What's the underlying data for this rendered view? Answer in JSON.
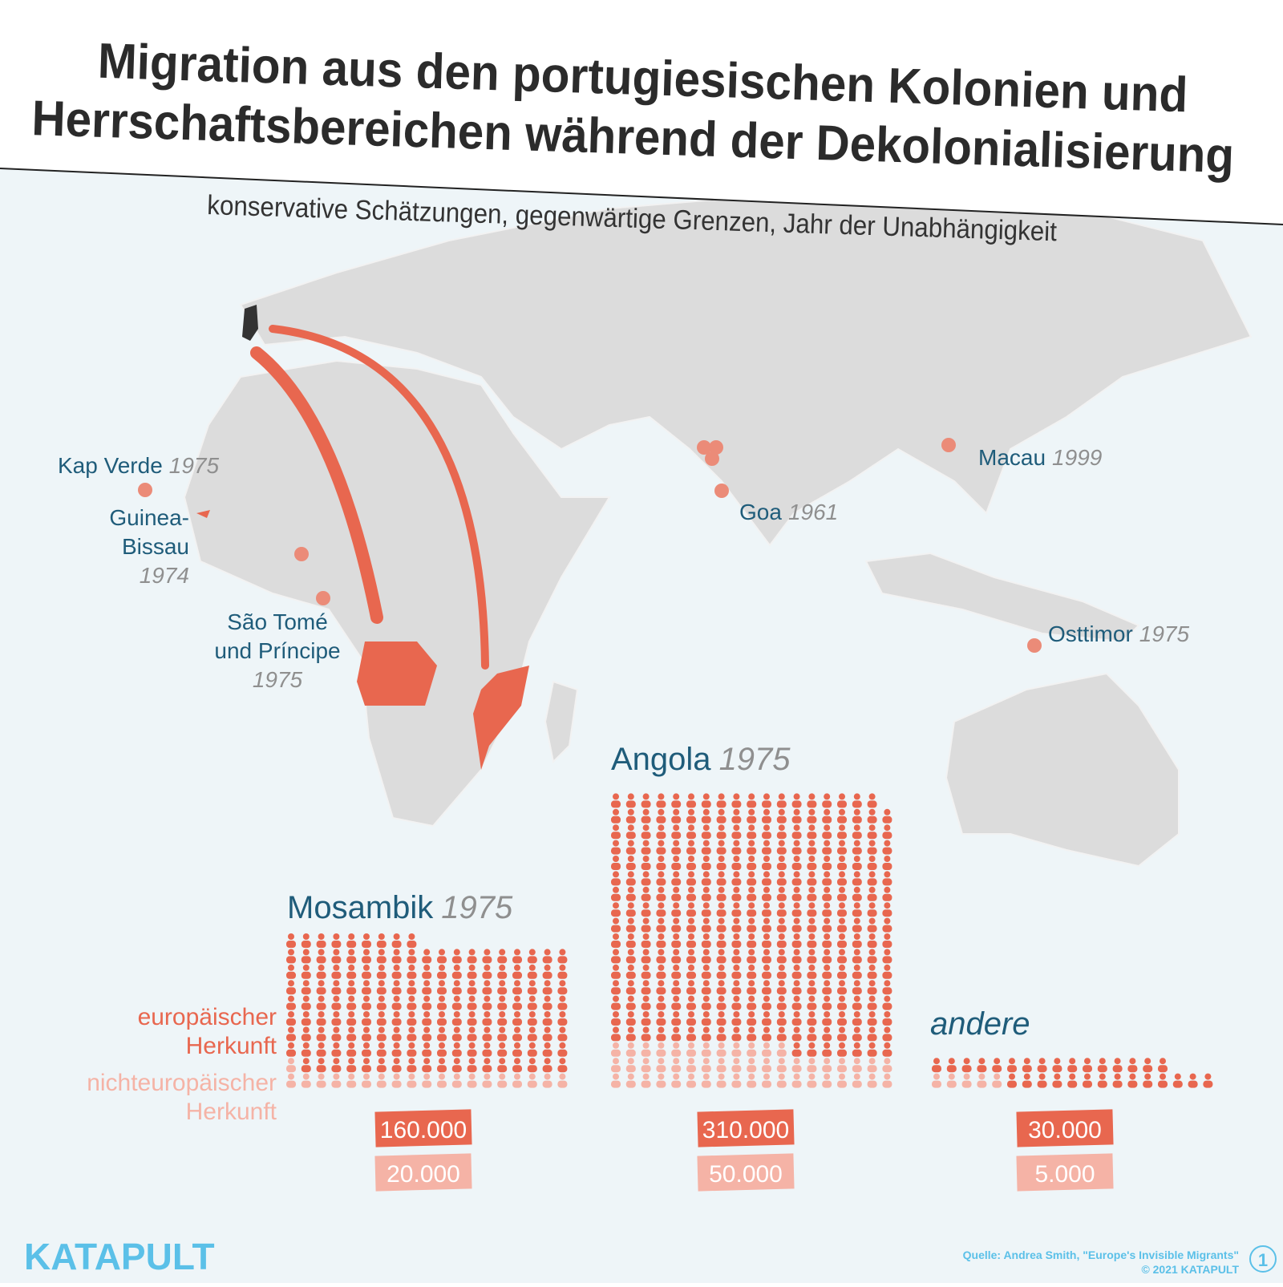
{
  "header": {
    "title_lines": [
      "Migration aus den portugiesischen Kolonien und",
      "Herrschaftsbereichen während der Dekolonialisierung"
    ],
    "subtitle": "konservative Schätzungen, gegenwärtige Grenzen, Jahr der Unabhängigkeit"
  },
  "map_labels": [
    {
      "name": "Kap Verde",
      "year": "1975"
    },
    {
      "name": "Guinea-",
      "name2": "Bissau",
      "year": "1974"
    },
    {
      "name": "São Tomé",
      "name2": "und Príncipe",
      "year": "1975"
    },
    {
      "name": "Goa",
      "year": "1961"
    },
    {
      "name": "Macau",
      "year": "1999"
    },
    {
      "name": "Osttimor",
      "year": "1975"
    }
  ],
  "legend": {
    "european": [
      "europäischer",
      "Herkunft"
    ],
    "non_european": [
      "nichteuropäischer",
      "Herkunft"
    ]
  },
  "pictograms": [
    {
      "name": "Mosambik",
      "year": "1975",
      "european": {
        "value": 160000,
        "label": "160.000"
      },
      "non_european": {
        "value": 20000,
        "label": "20.000"
      }
    },
    {
      "name": "Angola",
      "year": "1975",
      "european": {
        "value": 310000,
        "label": "310.000"
      },
      "non_european": {
        "value": 50000,
        "label": "50.000"
      }
    },
    {
      "name": "andere",
      "european": {
        "value": 30000,
        "label": "30.000"
      },
      "non_european": {
        "value": 5000,
        "label": "5.000"
      }
    }
  ],
  "footer": {
    "brand": "KATAPULT",
    "source": "Quelle: Andrea Smith, \"Europe's Invisible Migrants\"",
    "copyright": "© 2021 KATAPULT",
    "page": "1"
  }
}
